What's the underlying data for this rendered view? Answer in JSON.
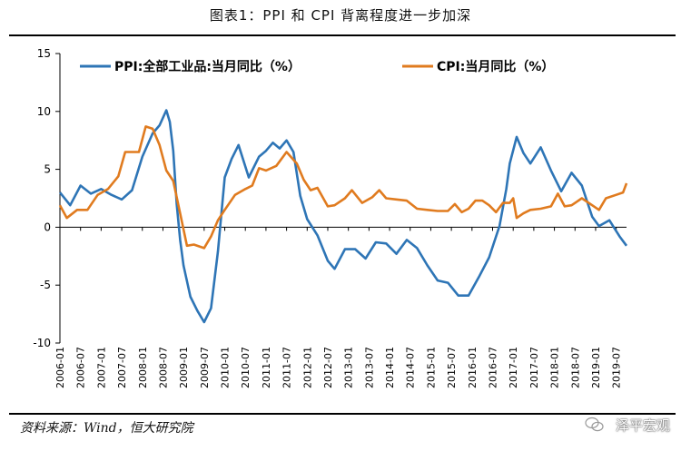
{
  "header": {
    "title": "图表1：PPI 和 CPI 背离程度进一步加深"
  },
  "footer": {
    "source": "资料来源：Wind，恒大研究院",
    "watermark": "泽平宏观"
  },
  "chart_data": {
    "type": "line",
    "title": "图表1：PPI 和 CPI 背离程度进一步加深",
    "ylim": [
      -10,
      15
    ],
    "yticks": [
      -10,
      -5,
      0,
      5,
      10,
      15
    ],
    "x_tick_labels": [
      "2006-01",
      "2006-07",
      "2007-01",
      "2007-07",
      "2008-01",
      "2008-07",
      "2009-01",
      "2009-07",
      "2010-01",
      "2010-07",
      "2011-01",
      "2011-07",
      "2012-01",
      "2012-07",
      "2013-01",
      "2013-07",
      "2014-01",
      "2014-07",
      "2015-01",
      "2015-07",
      "2016-01",
      "2016-07",
      "2017-01",
      "2017-07",
      "2018-01",
      "2018-07",
      "2019-01",
      "2019-07"
    ],
    "x_start": "2006-01",
    "x_end": "2019-10",
    "legend_position": "top",
    "series": [
      {
        "name": "PPI:全部工业品:当月同比（%）",
        "color": "#2e75b6",
        "points": [
          [
            "2006-01",
            3.0
          ],
          [
            "2006-04",
            1.9
          ],
          [
            "2006-07",
            3.6
          ],
          [
            "2006-10",
            2.9
          ],
          [
            "2007-01",
            3.3
          ],
          [
            "2007-04",
            2.8
          ],
          [
            "2007-07",
            2.4
          ],
          [
            "2007-10",
            3.2
          ],
          [
            "2008-01",
            6.1
          ],
          [
            "2008-04",
            8.1
          ],
          [
            "2008-06",
            8.8
          ],
          [
            "2008-08",
            10.1
          ],
          [
            "2008-09",
            9.1
          ],
          [
            "2008-10",
            6.6
          ],
          [
            "2008-11",
            2.0
          ],
          [
            "2008-12",
            -1.1
          ],
          [
            "2009-01",
            -3.3
          ],
          [
            "2009-03",
            -6.0
          ],
          [
            "2009-05",
            -7.2
          ],
          [
            "2009-07",
            -8.2
          ],
          [
            "2009-09",
            -7.0
          ],
          [
            "2009-11",
            -2.1
          ],
          [
            "2010-01",
            4.3
          ],
          [
            "2010-03",
            5.9
          ],
          [
            "2010-05",
            7.1
          ],
          [
            "2010-08",
            4.3
          ],
          [
            "2010-11",
            6.1
          ],
          [
            "2011-01",
            6.6
          ],
          [
            "2011-03",
            7.3
          ],
          [
            "2011-05",
            6.8
          ],
          [
            "2011-07",
            7.5
          ],
          [
            "2011-09",
            6.5
          ],
          [
            "2011-11",
            2.7
          ],
          [
            "2012-01",
            0.7
          ],
          [
            "2012-04",
            -0.7
          ],
          [
            "2012-07",
            -2.9
          ],
          [
            "2012-09",
            -3.6
          ],
          [
            "2012-12",
            -1.9
          ],
          [
            "2013-03",
            -1.9
          ],
          [
            "2013-06",
            -2.7
          ],
          [
            "2013-09",
            -1.3
          ],
          [
            "2013-12",
            -1.4
          ],
          [
            "2014-03",
            -2.3
          ],
          [
            "2014-06",
            -1.1
          ],
          [
            "2014-09",
            -1.8
          ],
          [
            "2014-12",
            -3.3
          ],
          [
            "2015-03",
            -4.6
          ],
          [
            "2015-06",
            -4.8
          ],
          [
            "2015-09",
            -5.9
          ],
          [
            "2015-12",
            -5.9
          ],
          [
            "2016-03",
            -4.3
          ],
          [
            "2016-06",
            -2.6
          ],
          [
            "2016-09",
            0.1
          ],
          [
            "2016-11",
            3.3
          ],
          [
            "2016-12",
            5.5
          ],
          [
            "2017-02",
            7.8
          ],
          [
            "2017-04",
            6.4
          ],
          [
            "2017-06",
            5.5
          ],
          [
            "2017-09",
            6.9
          ],
          [
            "2017-12",
            4.9
          ],
          [
            "2018-03",
            3.1
          ],
          [
            "2018-06",
            4.7
          ],
          [
            "2018-09",
            3.6
          ],
          [
            "2018-12",
            0.9
          ],
          [
            "2019-02",
            0.1
          ],
          [
            "2019-05",
            0.6
          ],
          [
            "2019-08",
            -0.8
          ],
          [
            "2019-10",
            -1.6
          ]
        ]
      },
      {
        "name": "CPI:当月同比（%）",
        "color": "#e07b1f",
        "points": [
          [
            "2006-01",
            1.9
          ],
          [
            "2006-03",
            0.8
          ],
          [
            "2006-06",
            1.5
          ],
          [
            "2006-09",
            1.5
          ],
          [
            "2006-12",
            2.8
          ],
          [
            "2007-03",
            3.3
          ],
          [
            "2007-06",
            4.4
          ],
          [
            "2007-08",
            6.5
          ],
          [
            "2007-10",
            6.5
          ],
          [
            "2007-12",
            6.5
          ],
          [
            "2008-02",
            8.7
          ],
          [
            "2008-04",
            8.5
          ],
          [
            "2008-06",
            7.1
          ],
          [
            "2008-08",
            4.9
          ],
          [
            "2008-10",
            4.0
          ],
          [
            "2008-12",
            1.2
          ],
          [
            "2009-02",
            -1.6
          ],
          [
            "2009-04",
            -1.5
          ],
          [
            "2009-07",
            -1.8
          ],
          [
            "2009-09",
            -0.8
          ],
          [
            "2009-11",
            0.6
          ],
          [
            "2010-01",
            1.5
          ],
          [
            "2010-04",
            2.8
          ],
          [
            "2010-07",
            3.3
          ],
          [
            "2010-09",
            3.6
          ],
          [
            "2010-11",
            5.1
          ],
          [
            "2011-01",
            4.9
          ],
          [
            "2011-04",
            5.3
          ],
          [
            "2011-07",
            6.5
          ],
          [
            "2011-10",
            5.5
          ],
          [
            "2011-12",
            4.1
          ],
          [
            "2012-02",
            3.2
          ],
          [
            "2012-04",
            3.4
          ],
          [
            "2012-07",
            1.8
          ],
          [
            "2012-09",
            1.9
          ],
          [
            "2012-12",
            2.5
          ],
          [
            "2013-02",
            3.2
          ],
          [
            "2013-05",
            2.1
          ],
          [
            "2013-08",
            2.6
          ],
          [
            "2013-10",
            3.2
          ],
          [
            "2013-12",
            2.5
          ],
          [
            "2014-03",
            2.4
          ],
          [
            "2014-06",
            2.3
          ],
          [
            "2014-09",
            1.6
          ],
          [
            "2014-12",
            1.5
          ],
          [
            "2015-03",
            1.4
          ],
          [
            "2015-06",
            1.4
          ],
          [
            "2015-08",
            2.0
          ],
          [
            "2015-10",
            1.3
          ],
          [
            "2015-12",
            1.6
          ],
          [
            "2016-02",
            2.3
          ],
          [
            "2016-04",
            2.3
          ],
          [
            "2016-06",
            1.9
          ],
          [
            "2016-08",
            1.3
          ],
          [
            "2016-10",
            2.1
          ],
          [
            "2016-12",
            2.1
          ],
          [
            "2017-01",
            2.5
          ],
          [
            "2017-02",
            0.8
          ],
          [
            "2017-04",
            1.2
          ],
          [
            "2017-06",
            1.5
          ],
          [
            "2017-09",
            1.6
          ],
          [
            "2017-12",
            1.8
          ],
          [
            "2018-02",
            2.9
          ],
          [
            "2018-04",
            1.8
          ],
          [
            "2018-06",
            1.9
          ],
          [
            "2018-09",
            2.5
          ],
          [
            "2018-12",
            1.9
          ],
          [
            "2019-02",
            1.5
          ],
          [
            "2019-04",
            2.5
          ],
          [
            "2019-07",
            2.8
          ],
          [
            "2019-09",
            3.0
          ],
          [
            "2019-10",
            3.8
          ]
        ]
      }
    ]
  }
}
